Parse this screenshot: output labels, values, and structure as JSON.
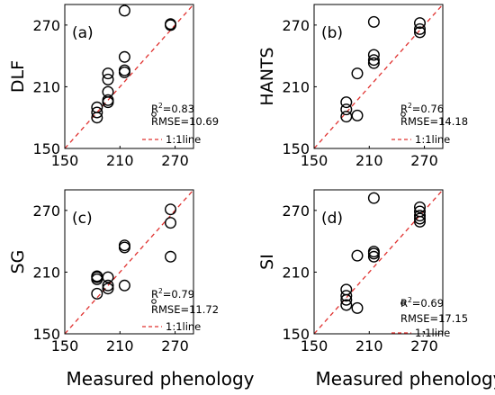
{
  "figure": {
    "xlabel_left": "Measured phenology",
    "xlabel_right": "Measured phenology"
  },
  "chart_data": [
    {
      "type": "scatter",
      "panel": "(a)",
      "ylabel": "DLF",
      "xlim": [
        150,
        290
      ],
      "ylim": [
        150,
        290
      ],
      "xticks": [
        "150",
        "210",
        "270"
      ],
      "yticks": [
        "150",
        "210",
        "270"
      ],
      "stats": {
        "r2": "R",
        "r2_sup": "2",
        "r2_val": "=0.83",
        "rmse": "RMSE=10.69",
        "legend_line": "1:1line"
      },
      "legend_position": "bottom-right",
      "x": [
        185,
        185,
        185,
        197,
        197,
        197,
        197,
        197,
        215,
        215,
        215,
        215,
        265,
        265
      ],
      "y": [
        180,
        185,
        190,
        195,
        197,
        205,
        217,
        223,
        224,
        226,
        239,
        284,
        270,
        271
      ]
    },
    {
      "type": "scatter",
      "panel": "(b)",
      "ylabel": "HANTS",
      "xlim": [
        150,
        290
      ],
      "ylim": [
        150,
        290
      ],
      "xticks": [
        "150",
        "210",
        "270"
      ],
      "yticks": [
        "150",
        "210",
        "270"
      ],
      "stats": {
        "r2": "R",
        "r2_sup": "2",
        "r2_val": "=0.76",
        "rmse": "RMSE=14.18",
        "legend_line": "1:1line"
      },
      "legend_position": "bottom-right",
      "x": [
        185,
        185,
        185,
        197,
        197,
        215,
        215,
        215,
        215,
        265,
        265,
        265
      ],
      "y": [
        181,
        188,
        195,
        182,
        223,
        233,
        236,
        241,
        273,
        263,
        266,
        272
      ]
    },
    {
      "type": "scatter",
      "panel": "(c)",
      "ylabel": "SG",
      "xlim": [
        150,
        290
      ],
      "ylim": [
        150,
        290
      ],
      "xticks": [
        "150",
        "210",
        "270"
      ],
      "yticks": [
        "150",
        "210",
        "270"
      ],
      "stats": {
        "r2": "R",
        "r2_sup": "2",
        "r2_val": "=0.79",
        "rmse": "RMSE=11.72",
        "legend_line": "1:1line"
      },
      "legend_position": "bottom-right",
      "x": [
        185,
        185,
        185,
        185,
        197,
        197,
        197,
        215,
        215,
        215,
        265,
        265,
        265
      ],
      "y": [
        189,
        203,
        205,
        206,
        194,
        197,
        205,
        197,
        234,
        236,
        225,
        258,
        271
      ]
    },
    {
      "type": "scatter",
      "panel": "(d)",
      "ylabel": "SI",
      "xlim": [
        150,
        290
      ],
      "ylim": [
        150,
        290
      ],
      "xticks": [
        "150",
        "210",
        "270"
      ],
      "yticks": [
        "150",
        "210",
        "270"
      ],
      "stats": {
        "r2": "R",
        "r2_sup": "2",
        "r2_val": "=0.69",
        "rmse": "RMSE=17.15",
        "legend_line": "1:1line"
      },
      "legend_position": "bottom-right",
      "x": [
        185,
        185,
        185,
        185,
        197,
        197,
        215,
        215,
        215,
        215,
        265,
        265,
        265,
        265,
        265
      ],
      "y": [
        178,
        183,
        187,
        193,
        175,
        226,
        225,
        228,
        230,
        282,
        259,
        262,
        265,
        269,
        273
      ]
    }
  ]
}
